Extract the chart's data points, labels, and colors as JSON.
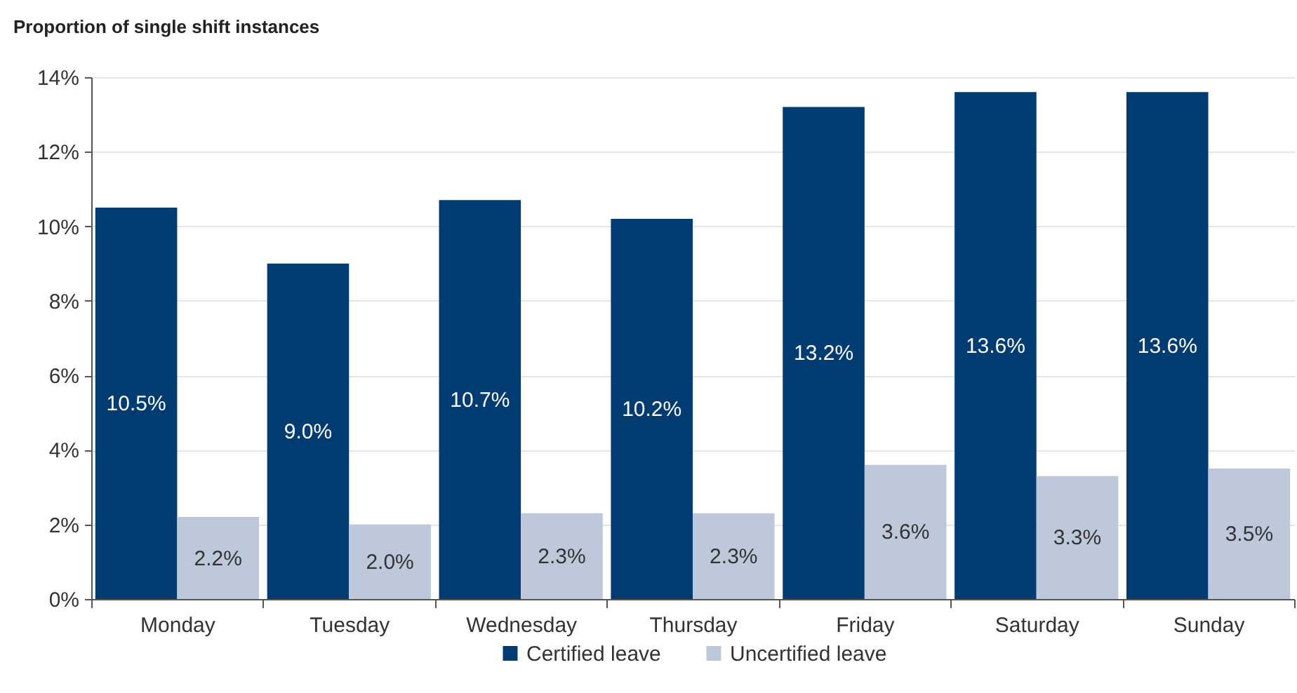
{
  "chart_data": {
    "type": "bar",
    "ylabel": "Proportion of single shift instances",
    "categories": [
      "Monday",
      "Tuesday",
      "Wednesday",
      "Thursday",
      "Friday",
      "Saturday",
      "Sunday"
    ],
    "series": [
      {
        "name": "Certified leave",
        "color": "#003b71",
        "values": [
          10.5,
          9.0,
          10.7,
          10.2,
          13.2,
          13.6,
          13.6
        ],
        "value_labels": [
          "10.5%",
          "9.0%",
          "10.7%",
          "10.2%",
          "13.2%",
          "13.6%",
          "13.6%"
        ]
      },
      {
        "name": "Uncertified leave",
        "color": "#bdc8da",
        "values": [
          2.2,
          2.0,
          2.3,
          2.3,
          3.6,
          3.3,
          3.5
        ],
        "value_labels": [
          "2.2%",
          "2.0%",
          "2.3%",
          "2.3%",
          "3.6%",
          "3.3%",
          "3.5%"
        ]
      }
    ],
    "ylim": [
      0,
      14
    ],
    "yticks": [
      {
        "value": 0,
        "label": "0%"
      },
      {
        "value": 2,
        "label": "2%"
      },
      {
        "value": 4,
        "label": "4%"
      },
      {
        "value": 6,
        "label": "6%"
      },
      {
        "value": 8,
        "label": "8%"
      },
      {
        "value": 10,
        "label": "10%"
      },
      {
        "value": 12,
        "label": "12%"
      },
      {
        "value": 14,
        "label": "14%"
      }
    ],
    "grid": "y",
    "legend": "bottom"
  }
}
